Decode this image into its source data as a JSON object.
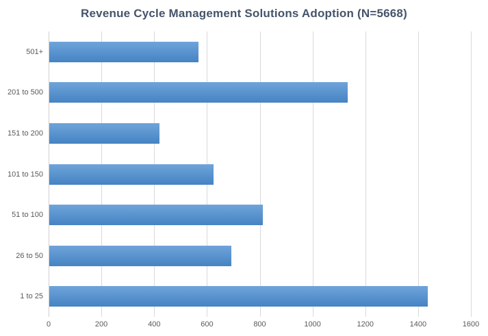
{
  "chart_data": {
    "type": "bar",
    "orientation": "horizontal",
    "title": "Revenue Cycle Management Solutions Adoption (N=5668)",
    "n": 5668,
    "categories": [
      "501+",
      "201 to 500",
      "151 to 200",
      "101 to 150",
      "51 to 100",
      "26 to 50",
      "1 to 25"
    ],
    "values": [
      566,
      1131,
      418,
      622,
      808,
      689,
      1434
    ],
    "xlabel": "",
    "ylabel": "",
    "xlim": [
      0,
      1600
    ],
    "x_ticks": [
      0,
      200,
      400,
      600,
      800,
      1000,
      1200,
      1400,
      1600
    ],
    "grid": "vertical-only",
    "legend": "none",
    "colors": {
      "bar_gradient_top": "#6FA4DA",
      "bar_gradient_bottom": "#4583C3",
      "title": "#44546A",
      "axis_labels": "#595959",
      "gridline": "#D9D9D9",
      "axis_line": "#CFCFCF",
      "background": "#FFFFFF"
    }
  }
}
